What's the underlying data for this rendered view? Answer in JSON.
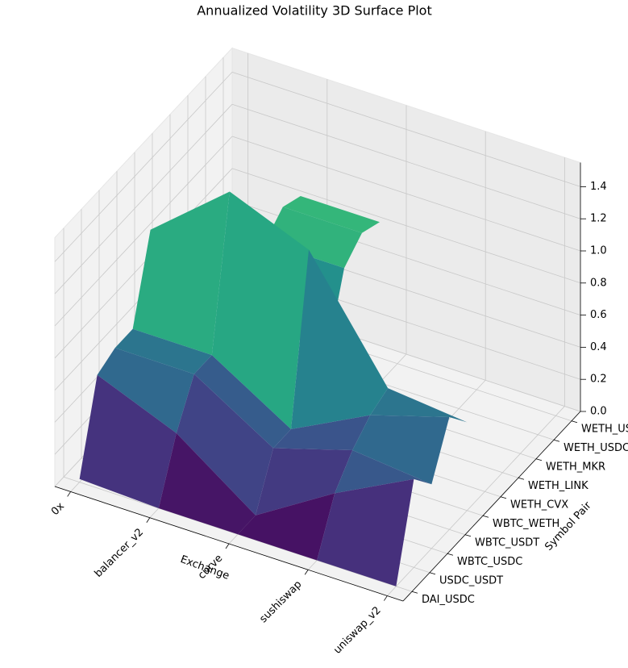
{
  "chart_data": {
    "type": "surface",
    "title": "Annualized Volatility 3D Surface Plot",
    "xlabel": "Exchange",
    "ylabel": "Symbol Pair",
    "x": [
      "0x",
      "balancer_v2",
      "curve",
      "sushiswap",
      "uniswap_v2"
    ],
    "y": [
      "DAI_USDC",
      "USDC_USDT",
      "WBTC_USDC",
      "WBTC_USDT",
      "WBTC_WETH",
      "WETH_CVX",
      "WETH_LINK",
      "WETH_MKR",
      "WETH_USDC",
      "WETH_USDT"
    ],
    "z": [
      [
        0.02,
        0.55,
        0.6,
        0.6,
        1.1,
        null,
        null,
        null,
        null,
        null
      ],
      [
        0.0,
        0.35,
        0.6,
        0.6,
        1.5,
        0.7,
        0.95,
        1.05,
        1.0,
        null
      ],
      [
        0.0,
        0.0,
        0.3,
        0.3,
        1.3,
        0.5,
        0.95,
        1.05,
        1.0,
        null
      ],
      [
        0.0,
        0.3,
        0.45,
        0.55,
        0.6,
        null,
        null,
        null,
        null,
        null
      ],
      [
        0.0,
        0.55,
        0.4,
        0.7,
        0.55,
        0.6,
        0.95,
        1.05,
        1.0,
        1.0
      ]
    ],
    "zlim": [
      0,
      1.55
    ],
    "zticks": [
      {
        "value": 0,
        "label": "0.0"
      },
      0.2,
      0.4,
      0.6,
      0.8,
      {
        "value": 1,
        "label": "1.0"
      },
      1.2,
      1.4
    ],
    "colormap": "viridis",
    "grid": true
  }
}
